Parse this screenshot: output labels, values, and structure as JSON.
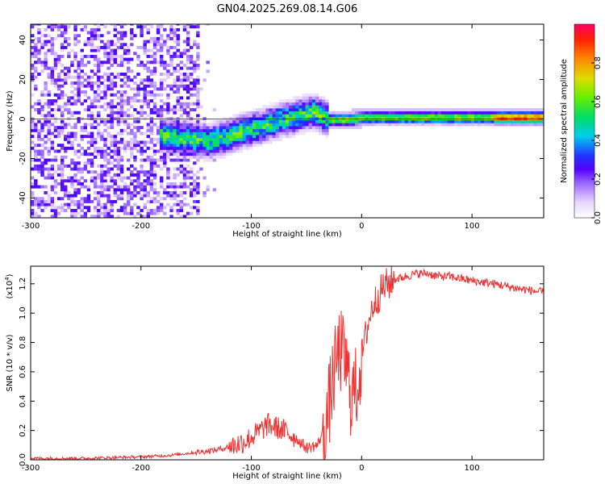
{
  "title": "GN04.2025.269.08.14.G06",
  "chart_data": [
    {
      "type": "heatmap",
      "title": "GN04.2025.269.08.14.G06",
      "xlabel": "Height of straight line (km)",
      "ylabel": "Frequency (Hz)",
      "xlim": [
        -300,
        165
      ],
      "ylim": [
        -50,
        48
      ],
      "xticks": [
        -300,
        -200,
        -100,
        0,
        100
      ],
      "xtick_labels": [
        "-300",
        "-200",
        "-100",
        "0",
        "100"
      ],
      "yticks": [
        -40,
        -20,
        0,
        20,
        40
      ],
      "ytick_labels": [
        "-40",
        "-20",
        "0",
        "20",
        "40"
      ],
      "ridge": {
        "x": [
          -185,
          -170,
          -155,
          -140,
          -125,
          -110,
          -95,
          -80,
          -65,
          -52,
          -45,
          -38,
          -30,
          -20,
          -10,
          0,
          20,
          50,
          80,
          110,
          140,
          165
        ],
        "y": [
          -9,
          -10,
          -11,
          -12,
          -10,
          -7,
          -5,
          -2,
          0,
          2,
          3,
          1,
          -1,
          -1,
          -1,
          0,
          0,
          0,
          0,
          0,
          0,
          0
        ]
      },
      "noise_region_x": [
        -300,
        -150
      ],
      "colorbar": {
        "label": "Normalized spectral amplitude",
        "range": [
          0.0,
          1.0
        ],
        "ticks": [
          0.0,
          0.2,
          0.4,
          0.6,
          0.8
        ],
        "tick_labels": [
          "0.0",
          "0.2",
          "0.4",
          "0.6",
          "0.8"
        ]
      }
    },
    {
      "type": "line",
      "xlabel": "Height of straight line (km)",
      "ylabel": "SNR (10 * v/v)",
      "y_scale_label": "(x10",
      "y_scale_exp": "4",
      "y_scale_close": ")",
      "xlim": [
        -300,
        165
      ],
      "ylim": [
        0.0,
        1.32
      ],
      "xticks": [
        -300,
        -200,
        -100,
        0,
        100
      ],
      "xtick_labels": [
        "-300",
        "-200",
        "-100",
        "0",
        "100"
      ],
      "yticks": [
        0.0,
        0.2,
        0.4,
        0.6,
        0.8,
        1.0,
        1.2
      ],
      "ytick_labels": [
        "0.0",
        "0.2",
        "0.4",
        "0.6",
        "0.8",
        "1.0",
        "1.2"
      ],
      "series": [
        {
          "name": "SNR",
          "color": "#ee3333",
          "x": [
            -300,
            -250,
            -200,
            -175,
            -150,
            -130,
            -115,
            -105,
            -95,
            -85,
            -70,
            -60,
            -50,
            -40,
            -32,
            -27,
            -24,
            -20,
            -15,
            -10,
            -5,
            0,
            5,
            10,
            20,
            30,
            40,
            50,
            60,
            70,
            80,
            100,
            120,
            140,
            165
          ],
          "y": [
            0.01,
            0.01,
            0.02,
            0.03,
            0.05,
            0.07,
            0.1,
            0.13,
            0.18,
            0.24,
            0.2,
            0.15,
            0.08,
            0.1,
            0.25,
            0.5,
            0.62,
            0.75,
            0.68,
            0.45,
            0.48,
            0.7,
            0.9,
            1.05,
            1.18,
            1.23,
            1.25,
            1.27,
            1.27,
            1.25,
            1.25,
            1.22,
            1.2,
            1.17,
            1.14
          ]
        }
      ]
    }
  ]
}
